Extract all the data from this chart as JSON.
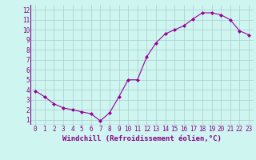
{
  "x": [
    0,
    1,
    2,
    3,
    4,
    5,
    6,
    7,
    8,
    9,
    10,
    11,
    12,
    13,
    14,
    15,
    16,
    17,
    18,
    19,
    20,
    21,
    22,
    23
  ],
  "y": [
    3.9,
    3.3,
    2.6,
    2.2,
    2.0,
    1.8,
    1.6,
    0.9,
    1.7,
    3.3,
    5.0,
    5.0,
    7.3,
    8.7,
    9.6,
    10.0,
    10.4,
    11.1,
    11.7,
    11.7,
    11.5,
    11.0,
    9.9,
    9.5
  ],
  "line_color": "#990099",
  "marker": "D",
  "marker_size": 2.0,
  "bg_color": "#cef5f0",
  "grid_color": "#aacccc",
  "xlabel": "Windchill (Refroidissement éolien,°C)",
  "xlim": [
    -0.5,
    23.5
  ],
  "ylim": [
    0.5,
    12.5
  ],
  "yticks": [
    1,
    2,
    3,
    4,
    5,
    6,
    7,
    8,
    9,
    10,
    11,
    12
  ],
  "xticks": [
    0,
    1,
    2,
    3,
    4,
    5,
    6,
    7,
    8,
    9,
    10,
    11,
    12,
    13,
    14,
    15,
    16,
    17,
    18,
    19,
    20,
    21,
    22,
    23
  ],
  "tick_color": "#880088",
  "label_color": "#880088",
  "tick_fontsize": 5.5,
  "xlabel_fontsize": 6.5
}
